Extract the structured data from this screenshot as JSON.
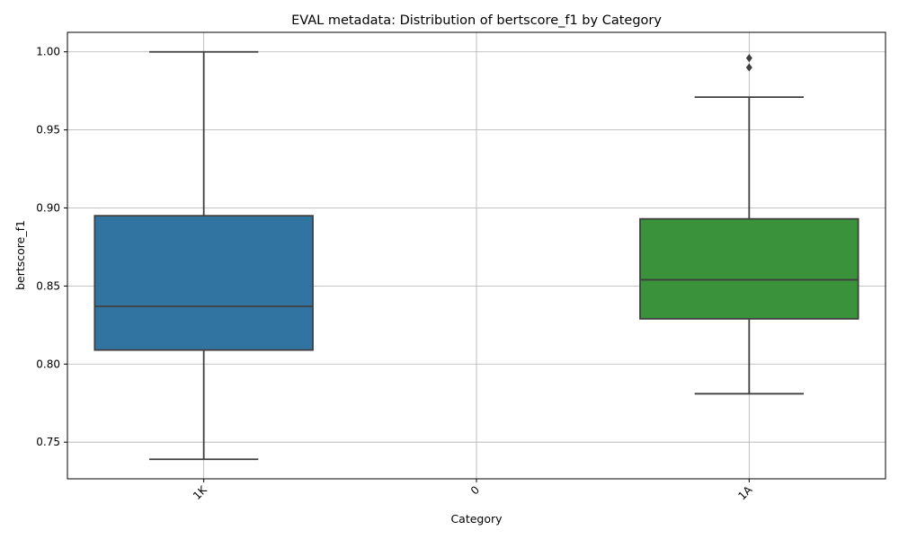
{
  "chart_data": {
    "type": "box",
    "title": "EVAL metadata: Distribution of bertscore_f1 by Category",
    "xlabel": "Category",
    "ylabel": "bertscore_f1",
    "categories": [
      "1K",
      "0",
      "1A"
    ],
    "ylim": [
      0.7265,
      1.0125
    ],
    "yticks": [
      "0.75",
      "0.80",
      "0.85",
      "0.90",
      "0.95",
      "1.00"
    ],
    "grid": true,
    "boxes": [
      {
        "category": "1K",
        "color": "#3274a1",
        "whisker_low": 0.739,
        "q1": 0.809,
        "median": 0.837,
        "q3": 0.895,
        "whisker_high": 1.0,
        "outliers": []
      },
      {
        "category": "0",
        "color": "#e1812c",
        "empty": true
      },
      {
        "category": "1A",
        "color": "#3a923a",
        "whisker_low": 0.781,
        "q1": 0.829,
        "median": 0.854,
        "q3": 0.893,
        "whisker_high": 0.971,
        "outliers": [
          0.99,
          0.996
        ]
      }
    ]
  }
}
